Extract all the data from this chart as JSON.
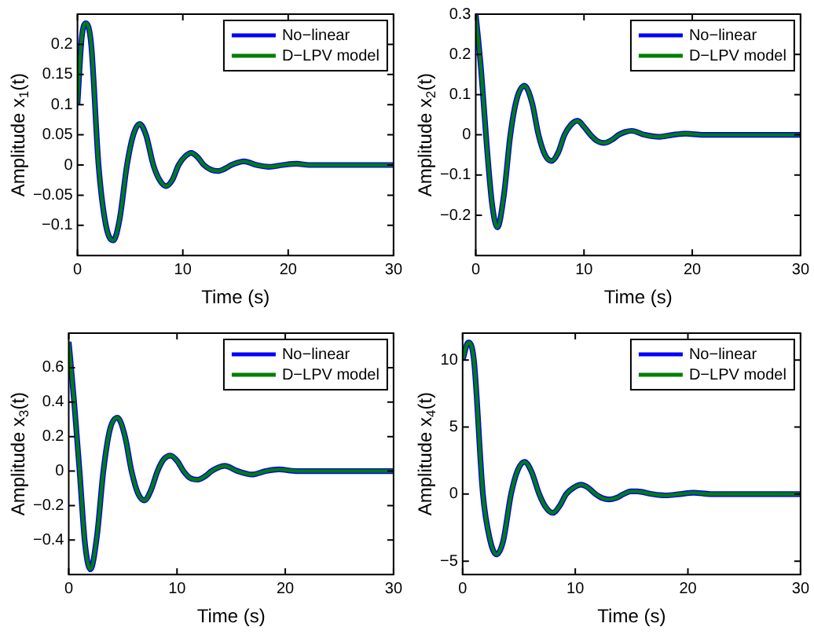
{
  "chart_data": [
    {
      "type": "line",
      "xlabel": "Time (s)",
      "ylabel": "Amplitude x$_{1}$(t)",
      "legend": "top right",
      "xlim": [
        0,
        30
      ],
      "xticks": [
        0,
        10,
        20,
        30
      ],
      "ylim": [
        -0.15,
        0.25
      ],
      "yticks": [
        -0.1,
        -0.05,
        0,
        0.05,
        0.1,
        0.15,
        0.2
      ],
      "x": [
        0,
        0.4,
        0.8,
        1.3,
        2.0,
        2.7,
        3.4,
        4.0,
        4.7,
        5.3,
        5.9,
        6.5,
        7.2,
        7.8,
        8.4,
        9.0,
        9.6,
        10.2,
        10.8,
        11.4,
        12.0,
        12.7,
        13.3,
        14.0,
        14.6,
        15.2,
        15.8,
        17.0,
        18.2,
        19.5,
        20.8,
        22.0,
        23.5,
        25,
        27,
        30
      ],
      "series": [
        {
          "name": "No−linear",
          "color": "#0000ff",
          "values": [
            0.1,
            0.21,
            0.235,
            0.2,
            0.0,
            -0.1,
            -0.125,
            -0.09,
            0,
            0.05,
            0.068,
            0.05,
            0,
            -0.025,
            -0.035,
            -0.025,
            0,
            0.014,
            0.02,
            0.013,
            0,
            -0.008,
            -0.01,
            -0.006,
            0,
            0.004,
            0.006,
            0,
            -0.003,
            0,
            0.002,
            0,
            0,
            0,
            0,
            0
          ]
        },
        {
          "name": "D−LPV model",
          "color": "#008000",
          "values": [
            0.1,
            0.21,
            0.235,
            0.2,
            0.0,
            -0.1,
            -0.125,
            -0.09,
            0,
            0.05,
            0.068,
            0.05,
            0,
            -0.025,
            -0.035,
            -0.025,
            0,
            0.014,
            0.02,
            0.013,
            0,
            -0.008,
            -0.01,
            -0.006,
            0,
            0.004,
            0.006,
            0,
            -0.003,
            0,
            0.002,
            0,
            0,
            0,
            0,
            0
          ]
        }
      ]
    },
    {
      "type": "line",
      "xlabel": "Time (s)",
      "ylabel": "Amplitude x$_{2}$(t)",
      "legend": "top right",
      "xlim": [
        0,
        30
      ],
      "xticks": [
        0,
        10,
        20,
        30
      ],
      "ylim": [
        -0.3,
        0.3
      ],
      "yticks": [
        -0.2,
        -0.1,
        0,
        0.1,
        0.2,
        0.3
      ],
      "x": [
        0,
        0.5,
        1.0,
        1.5,
        2.0,
        2.6,
        3.2,
        3.8,
        4.5,
        5.2,
        5.8,
        6.4,
        7.0,
        7.6,
        8.2,
        8.8,
        9.4,
        10.0,
        10.6,
        11.2,
        11.9,
        12.6,
        13.2,
        13.8,
        14.4,
        15.6,
        16.9,
        18.2,
        19.4,
        21,
        23,
        26,
        30
      ],
      "series": [
        {
          "name": "No−linear",
          "color": "#0000ff",
          "values": [
            0.3,
            0.16,
            -0.02,
            -0.17,
            -0.23,
            -0.15,
            0,
            0.09,
            0.122,
            0.08,
            0,
            -0.05,
            -0.065,
            -0.045,
            0,
            0.025,
            0.035,
            0.02,
            0,
            -0.015,
            -0.02,
            -0.012,
            0,
            0.007,
            0.01,
            0,
            -0.005,
            0,
            0.003,
            0,
            0,
            0,
            0
          ]
        },
        {
          "name": "D−LPV model",
          "color": "#008000",
          "values": [
            0.3,
            0.16,
            -0.02,
            -0.17,
            -0.23,
            -0.15,
            0,
            0.09,
            0.122,
            0.08,
            0,
            -0.05,
            -0.065,
            -0.045,
            0,
            0.025,
            0.035,
            0.02,
            0,
            -0.015,
            -0.02,
            -0.012,
            0,
            0.007,
            0.01,
            0,
            -0.005,
            0,
            0.003,
            0,
            0,
            0,
            0
          ]
        }
      ]
    },
    {
      "type": "line",
      "xlabel": "Time (s)",
      "ylabel": "Amplitude x$_{3}$(t)",
      "legend": "top right",
      "xlim": [
        0,
        30
      ],
      "xticks": [
        0,
        10,
        20,
        30
      ],
      "ylim": [
        -0.6,
        0.8
      ],
      "yticks": [
        -0.4,
        -0.2,
        0,
        0.2,
        0.4,
        0.6
      ],
      "x": [
        0,
        0.5,
        1.0,
        1.5,
        2.0,
        2.6,
        3.2,
        3.8,
        4.5,
        5.2,
        5.8,
        6.4,
        7.0,
        7.6,
        8.2,
        8.8,
        9.4,
        10.0,
        10.6,
        11.2,
        11.9,
        12.6,
        13.2,
        13.8,
        14.4,
        15.6,
        16.9,
        18.2,
        19.4,
        21,
        23,
        26,
        30
      ],
      "series": [
        {
          "name": "No−linear",
          "color": "#0000ff",
          "values": [
            0.75,
            0.4,
            0.0,
            -0.42,
            -0.57,
            -0.38,
            0,
            0.24,
            0.31,
            0.2,
            0,
            -0.13,
            -0.17,
            -0.11,
            0,
            0.07,
            0.09,
            0.06,
            0,
            -0.04,
            -0.05,
            -0.03,
            0,
            0.02,
            0.03,
            0,
            -0.02,
            0,
            0.01,
            0,
            0,
            0,
            0
          ]
        },
        {
          "name": "D−LPV model",
          "color": "#008000",
          "values": [
            0.75,
            0.4,
            0.0,
            -0.42,
            -0.57,
            -0.38,
            0,
            0.24,
            0.31,
            0.2,
            0,
            -0.13,
            -0.17,
            -0.11,
            0,
            0.07,
            0.09,
            0.06,
            0,
            -0.04,
            -0.05,
            -0.03,
            0,
            0.02,
            0.03,
            0,
            -0.02,
            0,
            0.01,
            0,
            0,
            0,
            0
          ]
        }
      ]
    },
    {
      "type": "line",
      "xlabel": "Time (s)",
      "ylabel": "Amplitude x$_{4}$(t)",
      "legend": "top right",
      "xlim": [
        0,
        30
      ],
      "xticks": [
        0,
        10,
        20,
        30
      ],
      "ylim": [
        -6,
        12
      ],
      "yticks": [
        -5,
        0,
        5,
        10
      ],
      "x": [
        0,
        0.5,
        1.0,
        1.8,
        2.4,
        3.0,
        3.6,
        4.3,
        4.9,
        5.5,
        6.1,
        6.8,
        7.4,
        8.0,
        8.6,
        9.2,
        9.9,
        10.5,
        11.1,
        11.8,
        12.4,
        13.0,
        13.6,
        14.3,
        14.9,
        15.5,
        16.8,
        18.0,
        19.3,
        20.5,
        22,
        24,
        27,
        30
      ],
      "series": [
        {
          "name": "No−linear",
          "color": "#0000ff",
          "values": [
            10,
            11.3,
            10,
            0,
            -3.3,
            -4.5,
            -3.5,
            0,
            1.8,
            2.4,
            1.7,
            0,
            -1.0,
            -1.4,
            -0.9,
            0,
            0.5,
            0.7,
            0.5,
            0,
            -0.3,
            -0.4,
            -0.3,
            0,
            0.2,
            0.2,
            0,
            -0.1,
            0,
            0.1,
            0,
            0,
            0,
            0
          ]
        },
        {
          "name": "D−LPV model",
          "color": "#008000",
          "values": [
            10,
            11.3,
            10,
            0,
            -3.3,
            -4.5,
            -3.5,
            0,
            1.8,
            2.4,
            1.7,
            0,
            -1.0,
            -1.4,
            -0.9,
            0,
            0.5,
            0.7,
            0.5,
            0,
            -0.3,
            -0.4,
            -0.3,
            0,
            0.2,
            0.2,
            0,
            -0.1,
            0,
            0.1,
            0,
            0,
            0,
            0
          ]
        }
      ]
    }
  ]
}
